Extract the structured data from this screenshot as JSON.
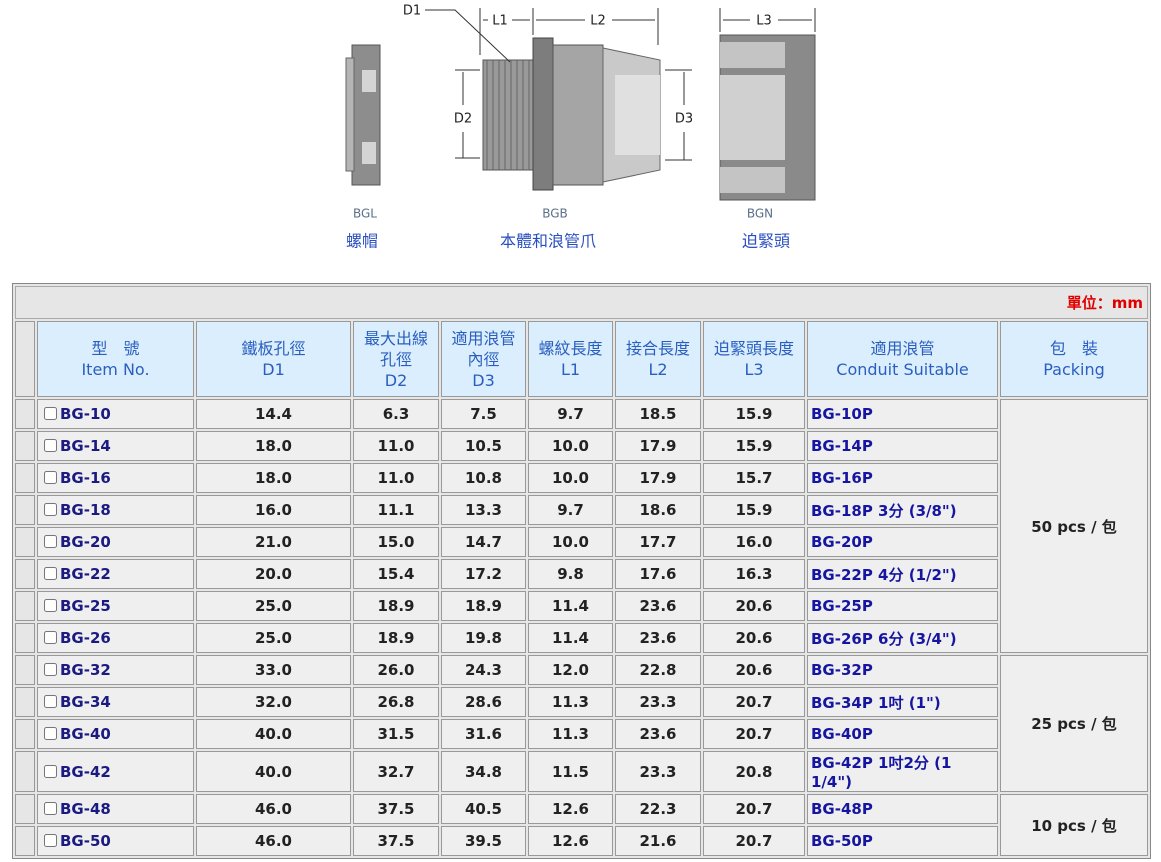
{
  "diagram": {
    "dimensions": {
      "d1": "D1",
      "l1": "L1",
      "l2": "L2",
      "l3": "L3",
      "d2": "D2",
      "d3": "D3"
    },
    "parts": [
      {
        "code": "BGL",
        "name": "螺帽"
      },
      {
        "code": "BGB",
        "name": "本體和浪管爪"
      },
      {
        "code": "BGN",
        "name": "迫緊頭"
      }
    ]
  },
  "table": {
    "unit": "單位：mm",
    "headers": [
      [
        "型　號",
        "Item No."
      ],
      [
        "鐵板孔徑",
        "D1"
      ],
      [
        "最大出線",
        "孔徑",
        "D2"
      ],
      [
        "適用浪管",
        "內徑",
        "D3"
      ],
      [
        "螺紋長度",
        "L1"
      ],
      [
        "接合長度",
        "L2"
      ],
      [
        "迫緊頭長度",
        "L3"
      ],
      [
        "適用浪管",
        "Conduit Suitable"
      ],
      [
        "包　裝",
        "Packing"
      ]
    ],
    "rows": [
      [
        "BG-10",
        "14.4",
        "6.3",
        "7.5",
        "9.7",
        "18.5",
        "15.9",
        "BG-10P"
      ],
      [
        "BG-14",
        "18.0",
        "11.0",
        "10.5",
        "10.0",
        "17.9",
        "15.9",
        "BG-14P"
      ],
      [
        "BG-16",
        "18.0",
        "11.0",
        "10.8",
        "10.0",
        "17.9",
        "15.7",
        "BG-16P"
      ],
      [
        "BG-18",
        "16.0",
        "11.1",
        "13.3",
        "9.7",
        "18.6",
        "15.9",
        "BG-18P 3分 (3/8\")"
      ],
      [
        "BG-20",
        "21.0",
        "15.0",
        "14.7",
        "10.0",
        "17.7",
        "16.0",
        "BG-20P"
      ],
      [
        "BG-22",
        "20.0",
        "15.4",
        "17.2",
        "9.8",
        "17.6",
        "16.3",
        "BG-22P 4分 (1/2\")"
      ],
      [
        "BG-25",
        "25.0",
        "18.9",
        "18.9",
        "11.4",
        "23.6",
        "20.6",
        "BG-25P"
      ],
      [
        "BG-26",
        "25.0",
        "18.9",
        "19.8",
        "11.4",
        "23.6",
        "20.6",
        "BG-26P 6分 (3/4\")"
      ],
      [
        "BG-32",
        "33.0",
        "26.0",
        "24.3",
        "12.0",
        "22.8",
        "20.6",
        "BG-32P"
      ],
      [
        "BG-34",
        "32.0",
        "26.8",
        "28.6",
        "11.3",
        "23.3",
        "20.7",
        "BG-34P 1吋 (1\")"
      ],
      [
        "BG-40",
        "40.0",
        "31.5",
        "31.6",
        "11.3",
        "23.6",
        "20.7",
        "BG-40P"
      ],
      [
        "BG-42",
        "40.0",
        "32.7",
        "34.8",
        "11.5",
        "23.3",
        "20.8",
        "BG-42P 1吋2分 (1 1/4\")"
      ],
      [
        "BG-48",
        "46.0",
        "37.5",
        "40.5",
        "12.6",
        "22.3",
        "20.7",
        "BG-48P"
      ],
      [
        "BG-50",
        "46.0",
        "37.5",
        "39.5",
        "12.6",
        "21.6",
        "20.7",
        "BG-50P"
      ]
    ],
    "packing": [
      "50 pcs / 包",
      "25 pcs / 包",
      "10 pcs / 包"
    ]
  }
}
